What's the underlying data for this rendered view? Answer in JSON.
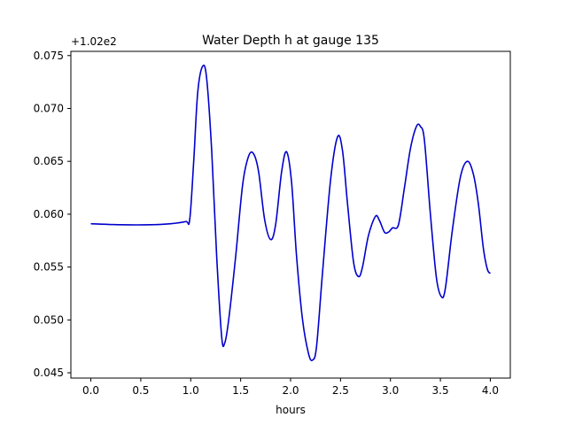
{
  "chart_data": {
    "type": "line",
    "title": "Water Depth h at gauge 135",
    "xlabel": "hours",
    "ylabel": "",
    "y_offset_label": "+1.02e2",
    "xlim": [
      -0.2,
      4.2
    ],
    "ylim": [
      0.0445,
      0.0754
    ],
    "xticks": [
      0.0,
      0.5,
      1.0,
      1.5,
      2.0,
      2.5,
      3.0,
      3.5,
      4.0
    ],
    "xtick_labels": [
      "0.0",
      "0.5",
      "1.0",
      "1.5",
      "2.0",
      "2.5",
      "3.0",
      "3.5",
      "4.0"
    ],
    "yticks": [
      0.045,
      0.05,
      0.055,
      0.06,
      0.065,
      0.07,
      0.075
    ],
    "ytick_labels": [
      "0.045",
      "0.050",
      "0.055",
      "0.060",
      "0.065",
      "0.070",
      "0.075"
    ],
    "grid": false,
    "line_color": "#0000cc",
    "series": [
      {
        "x": [
          0.0,
          0.3,
          0.6,
          0.8,
          0.95,
          0.99,
          1.03,
          1.07,
          1.12,
          1.16,
          1.21,
          1.26,
          1.31,
          1.34,
          1.38,
          1.45,
          1.52,
          1.58,
          1.63,
          1.68,
          1.74,
          1.8,
          1.85,
          1.91,
          1.96,
          2.01,
          2.06,
          2.12,
          2.18,
          2.22,
          2.26,
          2.32,
          2.4,
          2.47,
          2.52,
          2.57,
          2.63,
          2.68,
          2.72,
          2.78,
          2.85,
          2.89,
          2.94,
          2.98,
          3.02,
          3.08,
          3.14,
          3.2,
          3.26,
          3.3,
          3.34,
          3.4,
          3.46,
          3.51,
          3.55,
          3.62,
          3.7,
          3.77,
          3.83,
          3.88,
          3.93,
          3.97,
          4.0
        ],
        "y": [
          0.0591,
          0.059,
          0.059,
          0.0591,
          0.0593,
          0.0595,
          0.065,
          0.0715,
          0.074,
          0.0728,
          0.066,
          0.056,
          0.0484,
          0.0478,
          0.05,
          0.056,
          0.0628,
          0.0655,
          0.0657,
          0.064,
          0.0595,
          0.0576,
          0.059,
          0.064,
          0.0659,
          0.063,
          0.056,
          0.05,
          0.0468,
          0.0462,
          0.0475,
          0.0545,
          0.0632,
          0.0673,
          0.066,
          0.061,
          0.0555,
          0.0541,
          0.055,
          0.058,
          0.0598,
          0.0594,
          0.0583,
          0.0583,
          0.0587,
          0.059,
          0.0625,
          0.0662,
          0.0683,
          0.0683,
          0.067,
          0.06,
          0.054,
          0.0522,
          0.053,
          0.0585,
          0.0635,
          0.065,
          0.0638,
          0.061,
          0.0568,
          0.0548,
          0.0544
        ]
      }
    ]
  }
}
